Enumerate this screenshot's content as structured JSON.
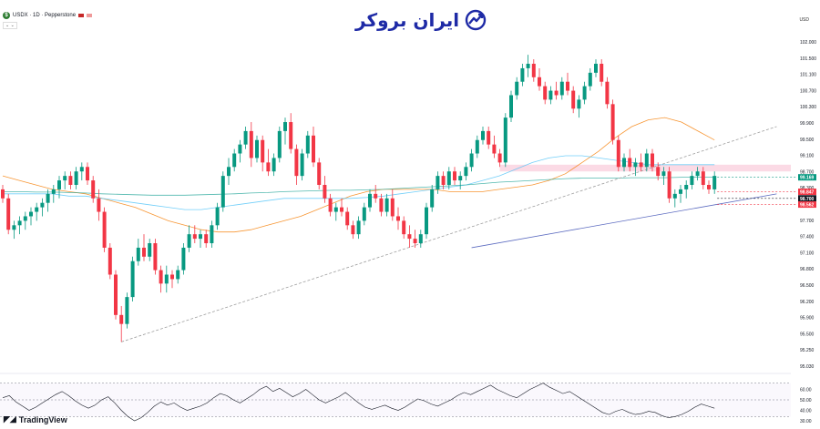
{
  "header": {
    "symbol_badge": "$",
    "symbol_text": "USDX · 1D · Pepperstone",
    "indicator_toggle": "⌄ ⌄",
    "currency": "USD"
  },
  "logo": {
    "text": "ایران بروکر",
    "icon": "trend-chart-icon",
    "color": "#1e2aa6"
  },
  "branding": {
    "text": "TradingView"
  },
  "chart_data": {
    "type": "candlestick",
    "symbol": "USDX",
    "timeframe": "1D",
    "source": "Pepperstone",
    "currency": "USD",
    "ylim": [
      95.0,
      102.35
    ],
    "y_ticks": [
      "102.000",
      "101.500",
      "101.100",
      "100.700",
      "100.300",
      "99.900",
      "99.500",
      "99.100",
      "98.700",
      "98.300",
      "98.000",
      "97.700",
      "97.400",
      "97.100",
      "96.800",
      "96.500",
      "96.200",
      "95.900",
      "95.500",
      "95.250",
      "95.030"
    ],
    "price_labels": [
      {
        "value": 99.169,
        "label": "99.169",
        "color": "#089981"
      },
      {
        "value": 98.847,
        "label": "98.847",
        "color": "#f23645"
      },
      {
        "value": 98.7,
        "label": "98.700",
        "color": "#131722"
      },
      {
        "value": 98.562,
        "label": "98.562",
        "color": "#f23645"
      }
    ],
    "resistance_zone": [
      99.3,
      99.45
    ],
    "candles": [
      [
        98.9,
        99.0,
        98.6,
        98.7
      ],
      [
        98.7,
        98.8,
        97.9,
        98.0
      ],
      [
        98.0,
        98.2,
        97.8,
        98.1
      ],
      [
        98.1,
        98.3,
        97.9,
        98.2
      ],
      [
        98.2,
        98.4,
        98.0,
        98.3
      ],
      [
        98.3,
        98.5,
        98.1,
        98.4
      ],
      [
        98.4,
        98.6,
        98.2,
        98.5
      ],
      [
        98.5,
        98.7,
        98.3,
        98.6
      ],
      [
        98.6,
        98.9,
        98.4,
        98.8
      ],
      [
        98.8,
        99.0,
        98.6,
        98.9
      ],
      [
        98.9,
        99.2,
        98.7,
        99.1
      ],
      [
        99.1,
        99.3,
        98.9,
        99.2
      ],
      [
        99.2,
        99.3,
        98.9,
        99.0
      ],
      [
        99.0,
        99.4,
        98.9,
        99.3
      ],
      [
        99.3,
        99.5,
        99.1,
        99.4
      ],
      [
        99.4,
        99.5,
        99.0,
        99.1
      ],
      [
        99.1,
        99.2,
        98.6,
        98.7
      ],
      [
        98.7,
        98.9,
        98.2,
        98.4
      ],
      [
        98.4,
        98.5,
        97.5,
        97.6
      ],
      [
        97.6,
        97.7,
        96.9,
        97.0
      ],
      [
        97.0,
        97.1,
        96.0,
        96.1
      ],
      [
        96.1,
        96.3,
        95.5,
        95.9
      ],
      [
        95.9,
        96.6,
        95.8,
        96.5
      ],
      [
        96.5,
        97.4,
        96.4,
        97.3
      ],
      [
        97.3,
        97.8,
        97.2,
        97.6
      ],
      [
        97.6,
        97.9,
        97.3,
        97.4
      ],
      [
        97.4,
        97.8,
        97.3,
        97.7
      ],
      [
        97.7,
        97.8,
        97.0,
        97.1
      ],
      [
        97.1,
        97.2,
        96.6,
        96.8
      ],
      [
        96.8,
        97.2,
        96.6,
        97.0
      ],
      [
        97.0,
        97.1,
        96.7,
        96.9
      ],
      [
        96.9,
        97.2,
        96.8,
        97.1
      ],
      [
        97.1,
        97.7,
        97.0,
        97.6
      ],
      [
        97.6,
        98.1,
        97.5,
        97.9
      ],
      [
        97.9,
        98.1,
        97.7,
        97.8
      ],
      [
        97.8,
        98.0,
        97.6,
        97.9
      ],
      [
        97.9,
        98.0,
        97.6,
        97.7
      ],
      [
        97.7,
        98.2,
        97.6,
        98.1
      ],
      [
        98.1,
        98.6,
        98.0,
        98.5
      ],
      [
        98.5,
        99.3,
        98.4,
        99.2
      ],
      [
        99.2,
        99.6,
        99.0,
        99.4
      ],
      [
        99.4,
        99.8,
        99.3,
        99.7
      ],
      [
        99.7,
        100.0,
        99.5,
        99.9
      ],
      [
        99.9,
        100.3,
        99.8,
        100.2
      ],
      [
        100.2,
        100.4,
        99.4,
        99.6
      ],
      [
        99.6,
        100.1,
        99.5,
        100.0
      ],
      [
        100.0,
        100.1,
        99.3,
        99.5
      ],
      [
        99.5,
        99.8,
        99.2,
        99.3
      ],
      [
        99.3,
        99.7,
        99.2,
        99.6
      ],
      [
        99.6,
        100.3,
        99.5,
        100.2
      ],
      [
        100.2,
        100.5,
        99.9,
        100.4
      ],
      [
        100.4,
        100.6,
        99.7,
        99.8
      ],
      [
        99.8,
        99.9,
        99.0,
        99.2
      ],
      [
        99.2,
        99.8,
        99.1,
        99.7
      ],
      [
        99.7,
        100.2,
        99.6,
        100.1
      ],
      [
        100.1,
        100.3,
        99.4,
        99.5
      ],
      [
        99.5,
        99.6,
        98.9,
        99.0
      ],
      [
        99.0,
        99.2,
        98.6,
        98.7
      ],
      [
        98.7,
        98.8,
        98.3,
        98.4
      ],
      [
        98.4,
        98.6,
        98.2,
        98.5
      ],
      [
        98.5,
        98.7,
        98.3,
        98.4
      ],
      [
        98.4,
        98.5,
        98.0,
        98.1
      ],
      [
        98.1,
        98.2,
        97.8,
        97.9
      ],
      [
        97.9,
        98.3,
        97.8,
        98.2
      ],
      [
        98.2,
        98.6,
        98.1,
        98.5
      ],
      [
        98.5,
        98.9,
        98.4,
        98.8
      ],
      [
        98.8,
        99.0,
        98.6,
        98.7
      ],
      [
        98.7,
        98.8,
        98.3,
        98.4
      ],
      [
        98.4,
        98.8,
        98.3,
        98.7
      ],
      [
        98.7,
        98.9,
        98.2,
        98.3
      ],
      [
        98.3,
        98.5,
        98.0,
        98.2
      ],
      [
        98.2,
        98.3,
        97.8,
        97.9
      ],
      [
        97.9,
        98.1,
        97.6,
        97.8
      ],
      [
        97.8,
        98.0,
        97.6,
        97.7
      ],
      [
        97.7,
        98.0,
        97.6,
        97.9
      ],
      [
        97.9,
        98.6,
        97.8,
        98.5
      ],
      [
        98.5,
        99.0,
        98.4,
        98.9
      ],
      [
        98.9,
        99.3,
        98.8,
        99.2
      ],
      [
        99.2,
        99.3,
        98.9,
        99.0
      ],
      [
        99.0,
        99.4,
        98.9,
        99.3
      ],
      [
        99.3,
        99.4,
        99.0,
        99.1
      ],
      [
        99.1,
        99.3,
        98.9,
        99.2
      ],
      [
        99.2,
        99.5,
        99.1,
        99.4
      ],
      [
        99.4,
        99.8,
        99.3,
        99.7
      ],
      [
        99.7,
        100.1,
        99.6,
        100.0
      ],
      [
        100.0,
        100.3,
        99.9,
        100.2
      ],
      [
        100.2,
        100.3,
        99.8,
        99.9
      ],
      [
        99.9,
        100.1,
        99.6,
        99.7
      ],
      [
        99.7,
        99.8,
        99.4,
        99.5
      ],
      [
        99.5,
        100.6,
        99.4,
        100.5
      ],
      [
        100.5,
        101.1,
        100.4,
        101.0
      ],
      [
        101.0,
        101.4,
        100.9,
        101.3
      ],
      [
        101.3,
        101.7,
        101.2,
        101.6
      ],
      [
        101.6,
        101.9,
        101.4,
        101.7
      ],
      [
        101.7,
        101.8,
        101.3,
        101.4
      ],
      [
        101.4,
        101.6,
        101.1,
        101.2
      ],
      [
        101.2,
        101.3,
        100.8,
        100.9
      ],
      [
        100.9,
        101.2,
        100.8,
        101.1
      ],
      [
        101.1,
        101.3,
        100.9,
        101.0
      ],
      [
        101.0,
        101.4,
        100.9,
        101.3
      ],
      [
        101.3,
        101.5,
        101.0,
        101.1
      ],
      [
        101.1,
        101.2,
        100.6,
        100.7
      ],
      [
        100.7,
        101.0,
        100.5,
        100.9
      ],
      [
        100.9,
        101.3,
        100.8,
        101.2
      ],
      [
        101.2,
        101.6,
        101.1,
        101.5
      ],
      [
        101.5,
        101.8,
        101.4,
        101.7
      ],
      [
        101.7,
        101.8,
        101.2,
        101.3
      ],
      [
        101.3,
        101.4,
        100.7,
        100.8
      ],
      [
        100.8,
        100.9,
        99.9,
        100.0
      ],
      [
        100.0,
        100.1,
        99.3,
        99.4
      ],
      [
        99.4,
        99.7,
        99.3,
        99.6
      ],
      [
        99.6,
        99.8,
        99.3,
        99.4
      ],
      [
        99.4,
        99.6,
        99.2,
        99.5
      ],
      [
        99.5,
        99.7,
        99.3,
        99.4
      ],
      [
        99.4,
        99.8,
        99.3,
        99.7
      ],
      [
        99.7,
        99.8,
        99.3,
        99.4
      ],
      [
        99.4,
        99.5,
        99.1,
        99.2
      ],
      [
        99.2,
        99.4,
        99.0,
        99.3
      ],
      [
        99.3,
        99.4,
        98.6,
        98.7
      ],
      [
        98.7,
        98.9,
        98.5,
        98.8
      ],
      [
        98.8,
        99.0,
        98.6,
        98.9
      ],
      [
        98.9,
        99.1,
        98.7,
        99.0
      ],
      [
        99.0,
        99.3,
        98.9,
        99.2
      ],
      [
        99.2,
        99.4,
        99.1,
        99.3
      ],
      [
        99.3,
        99.4,
        98.9,
        99.0
      ],
      [
        99.0,
        99.1,
        98.8,
        98.9
      ],
      [
        98.9,
        99.3,
        98.8,
        99.2
      ]
    ],
    "ma_series": [
      {
        "color": "#f57c00",
        "values": [
          99.2,
          99.1,
          99.0,
          98.9,
          98.85,
          98.8,
          98.7,
          98.6,
          98.5,
          98.35,
          98.2,
          98.1,
          98.0,
          97.95,
          97.95,
          98.0,
          98.1,
          98.2,
          98.3,
          98.45,
          98.6,
          98.75,
          98.85,
          98.9,
          98.9,
          98.9,
          98.9,
          98.85,
          98.85,
          98.85,
          98.9,
          98.95,
          99.0,
          99.1,
          99.25,
          99.5,
          99.75,
          100.05,
          100.3,
          100.45,
          100.5,
          100.4,
          100.2,
          100.0
        ]
      },
      {
        "color": "#4fc3f7",
        "values": [
          98.8,
          98.8,
          98.8,
          98.8,
          98.75,
          98.75,
          98.7,
          98.65,
          98.6,
          98.55,
          98.5,
          98.45,
          98.45,
          98.5,
          98.55,
          98.6,
          98.65,
          98.7,
          98.7,
          98.7,
          98.7,
          98.7,
          98.72,
          98.75,
          98.8,
          98.85,
          98.9,
          98.95,
          99.0,
          99.1,
          99.2,
          99.35,
          99.5,
          99.6,
          99.65,
          99.65,
          99.6,
          99.55,
          99.5,
          99.45,
          99.45,
          99.45,
          99.45,
          99.45
        ]
      },
      {
        "color": "#26a69a",
        "values": [
          98.85,
          98.85,
          98.84,
          98.84,
          98.83,
          98.82,
          98.8,
          98.79,
          98.78,
          98.77,
          98.77,
          98.77,
          98.78,
          98.79,
          98.8,
          98.82,
          98.83,
          98.85,
          98.86,
          98.87,
          98.88,
          98.88,
          98.89,
          98.9,
          98.92,
          98.94,
          98.96,
          98.98,
          99.0,
          99.03,
          99.06,
          99.08,
          99.1,
          99.12,
          99.14,
          99.15,
          99.15,
          99.15,
          99.16,
          99.16,
          99.16,
          99.17,
          99.17,
          99.17
        ]
      }
    ],
    "rsi": {
      "ylim": [
        30,
        70
      ],
      "ticks": [
        "60.00",
        "50.00",
        "40.00",
        "30.00"
      ],
      "levels": [
        66,
        50,
        34
      ],
      "values": [
        52,
        54,
        48,
        44,
        40,
        43,
        47,
        51,
        55,
        58,
        54,
        49,
        45,
        42,
        45,
        50,
        53,
        47,
        40,
        34,
        30,
        33,
        38,
        44,
        48,
        45,
        47,
        43,
        40,
        42,
        44,
        47,
        52,
        56,
        54,
        50,
        47,
        51,
        55,
        60,
        63,
        58,
        61,
        57,
        53,
        56,
        60,
        55,
        50,
        47,
        50,
        53,
        57,
        52,
        47,
        43,
        41,
        43,
        45,
        42,
        40,
        43,
        47,
        51,
        49,
        46,
        44,
        47,
        50,
        54,
        57,
        55,
        58,
        61,
        64,
        60,
        57,
        54,
        52,
        56,
        60,
        63,
        66,
        62,
        59,
        56,
        58,
        54,
        50,
        46,
        42,
        38,
        36,
        39,
        41,
        38,
        36,
        37,
        39,
        38,
        35,
        33,
        34,
        36,
        39,
        43,
        46,
        44,
        42
      ]
    },
    "trendlines": [
      {
        "color": "#9e9e9e",
        "style": "dashed",
        "from": {
          "bar": 21,
          "price": 95.5
        },
        "to": {
          "bar": 137,
          "price": 100.3
        }
      },
      {
        "color": "#5c6bc0",
        "style": "solid",
        "from": {
          "bar": 83,
          "price": 97.6
        },
        "to": {
          "bar": 137,
          "price": 98.8
        }
      }
    ]
  }
}
